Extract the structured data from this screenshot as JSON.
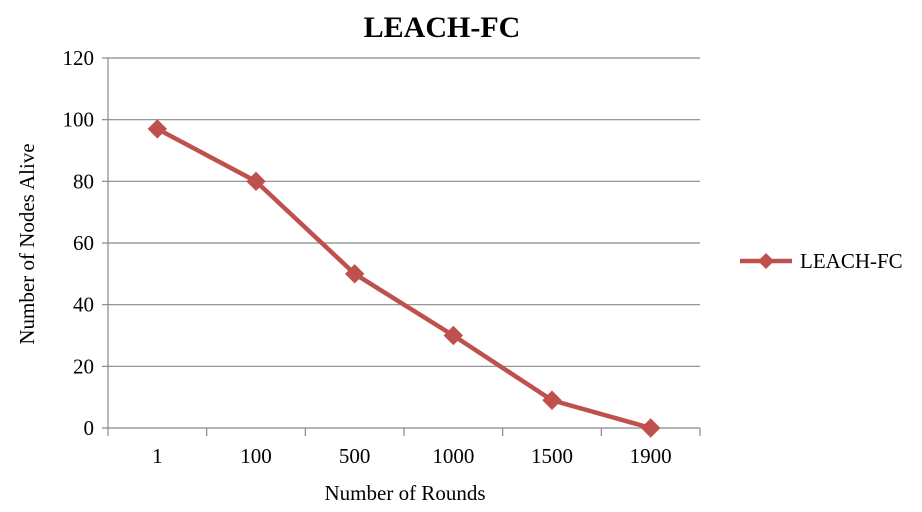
{
  "chart_data": {
    "type": "line",
    "title": "LEACH-FC",
    "xlabel": "Number of Rounds",
    "ylabel": "Number of Nodes Alive",
    "categories": [
      "1",
      "100",
      "500",
      "1000",
      "1500",
      "1900"
    ],
    "series": [
      {
        "name": "LEACH-FC",
        "values": [
          97,
          80,
          50,
          30,
          9,
          0
        ],
        "color": "#c0504d",
        "marker": "diamond"
      }
    ],
    "ylim": [
      0,
      120
    ],
    "yticks": [
      0,
      20,
      40,
      60,
      80,
      100,
      120
    ],
    "grid": "horizontal",
    "legend_position": "right"
  }
}
